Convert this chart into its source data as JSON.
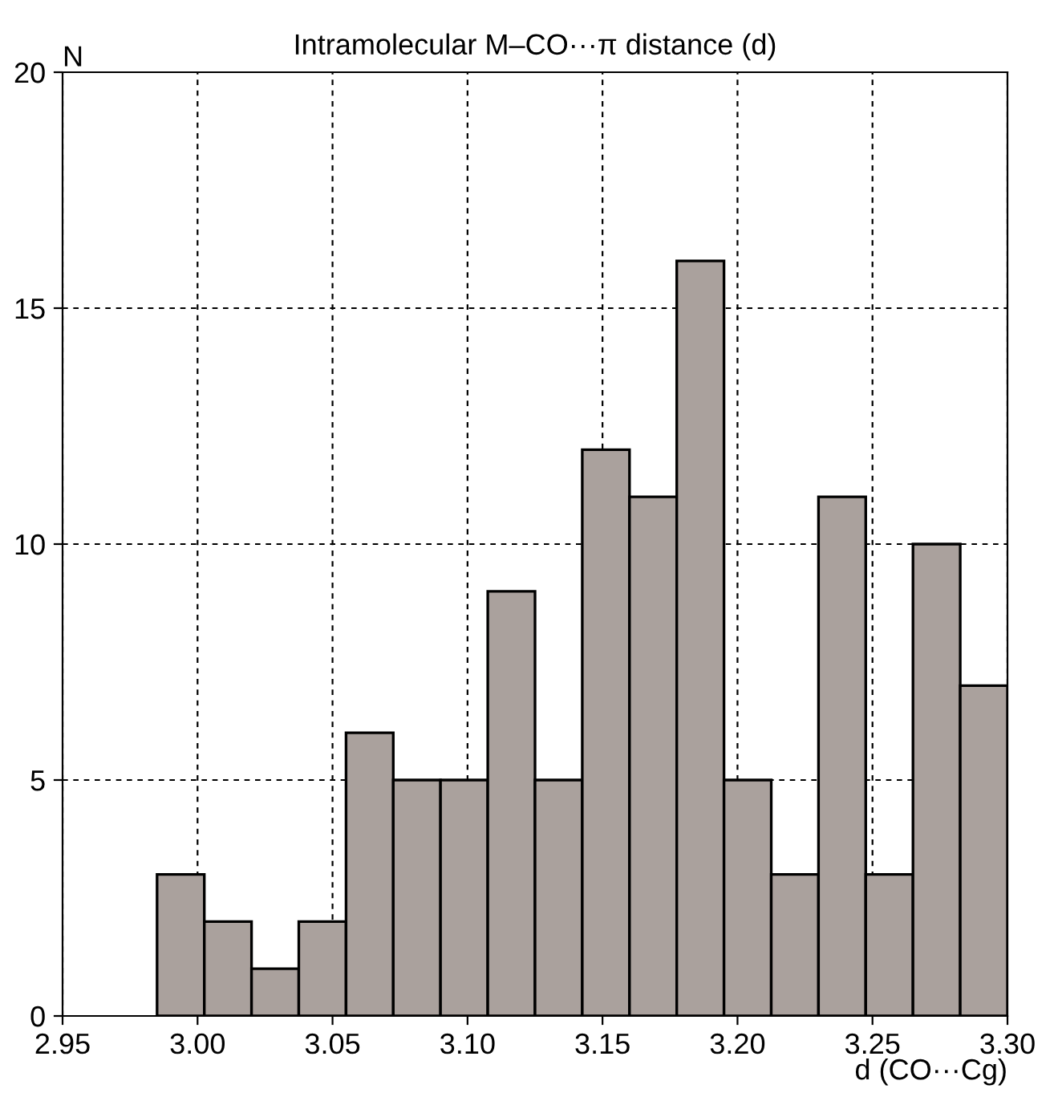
{
  "chart_data": {
    "type": "histogram",
    "title": "Intramolecular M–CO···π distance (d)",
    "xlabel": "d (CO···Cg)",
    "ylabel": "N",
    "bins": [
      2.985,
      3.0025,
      3.02,
      3.0375,
      3.055,
      3.0725,
      3.09,
      3.1075,
      3.125,
      3.1425,
      3.16,
      3.1775,
      3.195,
      3.2125,
      3.23,
      3.2475,
      3.265,
      3.2825,
      3.3
    ],
    "values": [
      3,
      2,
      1,
      2,
      6,
      5,
      5,
      9,
      5,
      12,
      11,
      16,
      5,
      3,
      11,
      3,
      10,
      7
    ],
    "color": "#aaa19d",
    "xlim": [
      2.95,
      3.3
    ],
    "xticks": [
      2.95,
      {
        "value": 3.0,
        "label": "3.00"
      },
      3.05,
      {
        "value": 3.1,
        "label": "3.10"
      },
      3.15,
      {
        "value": 3.2,
        "label": "3.20"
      },
      3.25,
      {
        "value": 3.3,
        "label": "3.30"
      }
    ],
    "ylim": [
      0,
      20
    ],
    "yticks": [
      0,
      5,
      10,
      15,
      20
    ],
    "grid": true
  }
}
